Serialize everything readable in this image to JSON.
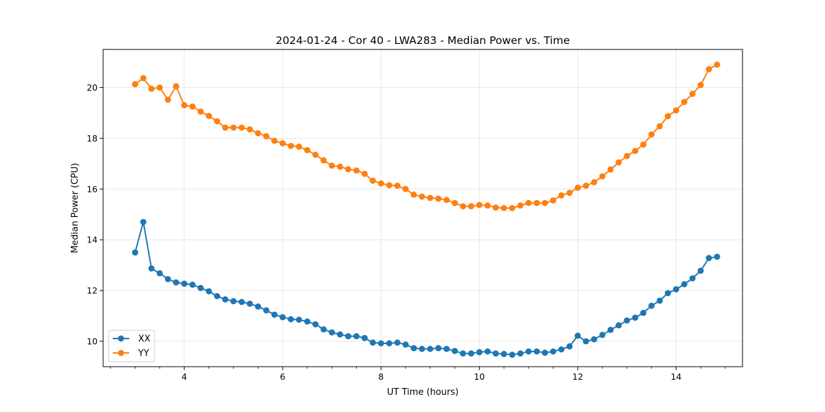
{
  "chart_data": {
    "type": "line",
    "title": "2024-01-24 - Cor 40 - LWA283 - Median Power vs. Time",
    "xlabel": "UT Time (hours)",
    "ylabel": "Median Power (CPU)",
    "xlim": [
      2.35,
      15.35
    ],
    "ylim": [
      9.0,
      21.5
    ],
    "x_ticks": [
      4,
      6,
      8,
      10,
      12,
      14
    ],
    "y_ticks": [
      10,
      12,
      14,
      16,
      18,
      20
    ],
    "x_tick_labels": [
      "4",
      "6",
      "8",
      "10",
      "12",
      "14"
    ],
    "y_tick_labels": [
      "10",
      "12",
      "14",
      "16",
      "18",
      "20"
    ],
    "grid": true,
    "legend_position": "lower-left",
    "x": [
      3.0,
      3.167,
      3.333,
      3.5,
      3.667,
      3.833,
      4.0,
      4.167,
      4.333,
      4.5,
      4.667,
      4.833,
      5.0,
      5.167,
      5.333,
      5.5,
      5.667,
      5.833,
      6.0,
      6.167,
      6.333,
      6.5,
      6.667,
      6.833,
      7.0,
      7.167,
      7.333,
      7.5,
      7.667,
      7.833,
      8.0,
      8.167,
      8.333,
      8.5,
      8.667,
      8.833,
      9.0,
      9.167,
      9.333,
      9.5,
      9.667,
      9.833,
      10.0,
      10.167,
      10.333,
      10.5,
      10.667,
      10.833,
      11.0,
      11.167,
      11.333,
      11.5,
      11.667,
      11.833,
      12.0,
      12.167,
      12.333,
      12.5,
      12.667,
      12.833,
      13.0,
      13.167,
      13.333,
      13.5,
      13.667,
      13.833,
      14.0,
      14.167,
      14.333,
      14.5,
      14.667,
      14.833
    ],
    "series": [
      {
        "name": "XX",
        "color": "#1f77b4",
        "values": [
          13.5,
          14.7,
          12.87,
          12.68,
          12.45,
          12.32,
          12.27,
          12.23,
          12.1,
          11.97,
          11.78,
          11.65,
          11.58,
          11.55,
          11.48,
          11.37,
          11.22,
          11.05,
          10.95,
          10.87,
          10.85,
          10.78,
          10.67,
          10.47,
          10.35,
          10.27,
          10.2,
          10.2,
          10.13,
          9.95,
          9.92,
          9.92,
          9.95,
          9.87,
          9.73,
          9.7,
          9.7,
          9.73,
          9.7,
          9.62,
          9.52,
          9.52,
          9.57,
          9.6,
          9.52,
          9.5,
          9.47,
          9.52,
          9.6,
          9.6,
          9.55,
          9.6,
          9.68,
          9.8,
          10.22,
          10.0,
          10.08,
          10.25,
          10.45,
          10.63,
          10.82,
          10.93,
          11.12,
          11.4,
          11.6,
          11.9,
          12.05,
          12.25,
          12.48,
          12.78,
          13.28,
          13.33
        ]
      },
      {
        "name": "YY",
        "color": "#ff7f0e",
        "values": [
          20.13,
          20.37,
          19.95,
          20.0,
          19.52,
          20.05,
          19.3,
          19.25,
          19.05,
          18.88,
          18.67,
          18.42,
          18.42,
          18.42,
          18.35,
          18.2,
          18.08,
          17.9,
          17.8,
          17.7,
          17.67,
          17.53,
          17.35,
          17.13,
          16.92,
          16.88,
          16.78,
          16.73,
          16.6,
          16.33,
          16.22,
          16.15,
          16.13,
          16.0,
          15.78,
          15.7,
          15.65,
          15.62,
          15.57,
          15.45,
          15.32,
          15.32,
          15.37,
          15.35,
          15.27,
          15.25,
          15.25,
          15.35,
          15.45,
          15.45,
          15.45,
          15.55,
          15.75,
          15.85,
          16.05,
          16.13,
          16.27,
          16.5,
          16.77,
          17.05,
          17.3,
          17.5,
          17.75,
          18.15,
          18.47,
          18.87,
          19.1,
          19.43,
          19.75,
          20.1,
          20.72,
          20.9
        ]
      }
    ]
  }
}
